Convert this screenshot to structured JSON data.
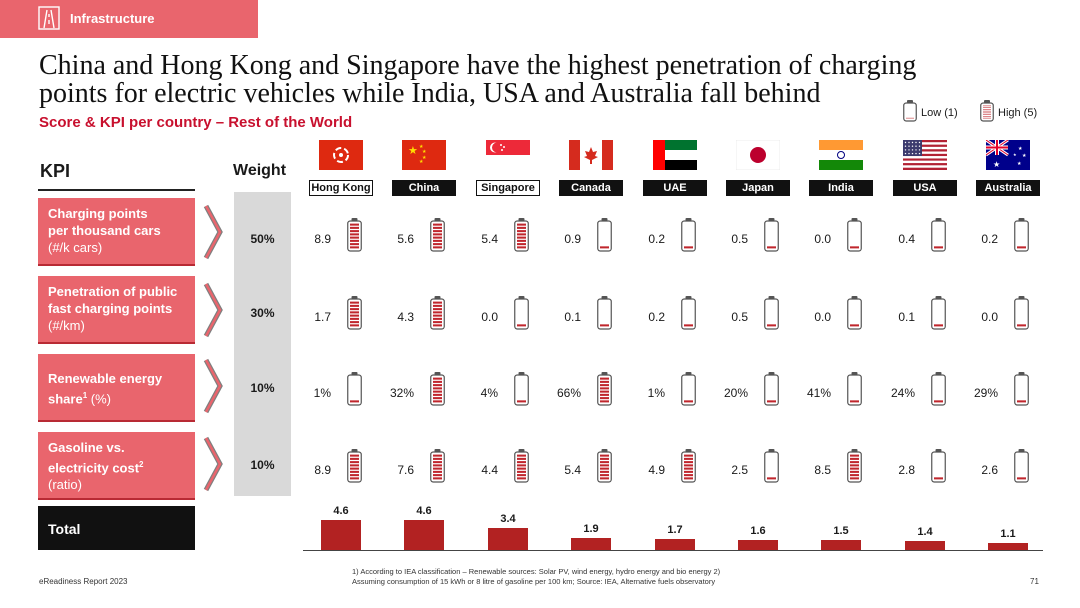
{
  "header": {
    "section_tag": "Infrastructure"
  },
  "title": "China and Hong Kong and Singapore have the highest penetration of charging points for electric vehicles while India, USA and Australia fall behind",
  "subtitle": "Score & KPI per country – Rest of the World",
  "legend": {
    "low": "Low (1)",
    "high": "High (5)"
  },
  "table": {
    "kpi_header": "KPI",
    "weight_header": "Weight",
    "countries": [
      {
        "name": "Hong Kong",
        "flag": "flag-hong-kong-icon",
        "values": [
          "8.9",
          "1.7",
          "1%",
          "8.9"
        ],
        "scores": [
          5,
          5,
          1,
          5
        ]
      },
      {
        "name": "China",
        "flag": "flag-china-icon",
        "values": [
          "5.6",
          "4.3",
          "32%",
          "7.6"
        ],
        "scores": [
          5,
          5,
          5,
          5
        ]
      },
      {
        "name": "Singapore",
        "flag": "flag-singapore-icon",
        "values": [
          "5.4",
          "0.0",
          "4%",
          "4.4"
        ],
        "scores": [
          5,
          1,
          1,
          5
        ]
      },
      {
        "name": "Canada",
        "flag": "flag-canada-icon",
        "values": [
          "0.9",
          "0.1",
          "66%",
          "5.4"
        ],
        "scores": [
          1,
          1,
          5,
          5
        ]
      },
      {
        "name": "UAE",
        "flag": "flag-uae-icon",
        "values": [
          "0.2",
          "0.2",
          "1%",
          "4.9"
        ],
        "scores": [
          1,
          1,
          1,
          5
        ]
      },
      {
        "name": "Japan",
        "flag": "flag-japan-icon",
        "values": [
          "0.5",
          "0.5",
          "20%",
          "2.5"
        ],
        "scores": [
          1,
          1,
          1,
          1
        ]
      },
      {
        "name": "India",
        "flag": "flag-india-icon",
        "values": [
          "0.0",
          "0.0",
          "41%",
          "8.5"
        ],
        "scores": [
          1,
          1,
          1,
          5
        ]
      },
      {
        "name": "USA",
        "flag": "flag-usa-icon",
        "values": [
          "0.4",
          "0.1",
          "24%",
          "2.8"
        ],
        "scores": [
          1,
          1,
          1,
          1
        ]
      },
      {
        "name": "Australia",
        "flag": "flag-australia-icon",
        "values": [
          "0.2",
          "0.0",
          "29%",
          "2.6"
        ],
        "scores": [
          1,
          1,
          1,
          1
        ]
      }
    ],
    "kpis": [
      {
        "line1": "Charging points",
        "line2": "per thousand cars",
        "unit": "(#/k cars)",
        "sup": "",
        "weight": "50%"
      },
      {
        "line1": "Penetration of public",
        "line2": "fast charging points",
        "unit": "(#/km)",
        "sup": "",
        "weight": "30%"
      },
      {
        "line1": "Renewable energy",
        "line2": "share",
        "unit": " (%)",
        "sup": "1",
        "weight": "10%"
      },
      {
        "line1": "Gasoline vs.",
        "line2": "electricity cost",
        "unit": "(ratio)",
        "sup": "2",
        "weight": "10%"
      }
    ],
    "total_label": "Total",
    "totals": [
      {
        "label": "4.6",
        "value": 4.6
      },
      {
        "label": "4.6",
        "value": 4.6
      },
      {
        "label": "3.4",
        "value": 3.4
      },
      {
        "label": "1.9",
        "value": 1.9
      },
      {
        "label": "1.7",
        "value": 1.7
      },
      {
        "label": "1.6",
        "value": 1.6
      },
      {
        "label": "1.5",
        "value": 1.5
      },
      {
        "label": "1.4",
        "value": 1.4
      },
      {
        "label": "1.1",
        "value": 1.1
      }
    ]
  },
  "footer": {
    "report": "eReadiness Report 2023",
    "footnote1": "1) According to IEA classification – Renewable sources: Solar PV, wind energy, hydro energy and bio energy 2)",
    "footnote2": "Assuming consumption of 15 kWh or 8 litre of gasoline per 100 km; Source: IEA, Alternative fuels observatory",
    "page": "71"
  },
  "colors": {
    "accent": "#e9656d",
    "bar": "#b22222",
    "battery_fill": "#c0262d"
  }
}
